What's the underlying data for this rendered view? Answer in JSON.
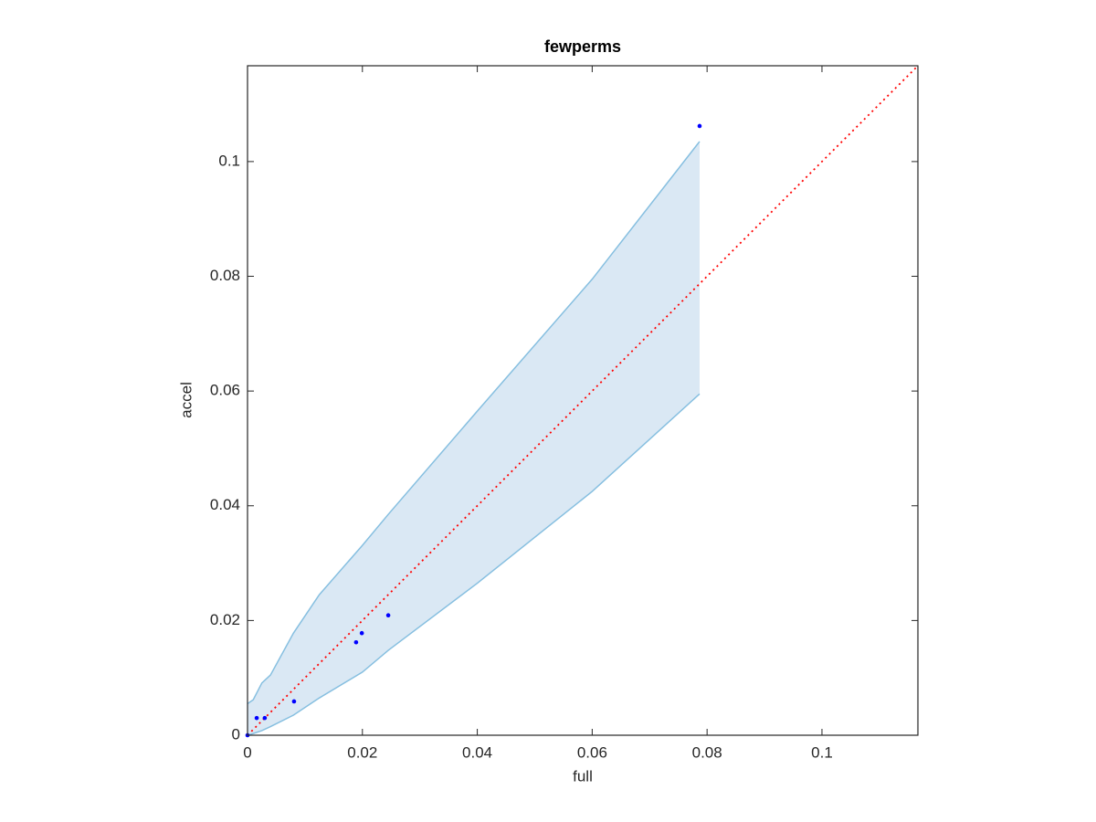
{
  "chart_data": {
    "type": "scatter",
    "title": "fewperms",
    "x_label": "full",
    "y_label": "accel",
    "xlim": [
      0,
      0.1167
    ],
    "ylim": [
      0,
      0.1167
    ],
    "xticks": [
      0,
      0.02,
      0.04,
      0.06,
      0.08,
      0.1
    ],
    "yticks": [
      0,
      0.02,
      0.04,
      0.06,
      0.08,
      0.1
    ],
    "points": {
      "color": "#0000ff",
      "x": [
        0,
        0.0016,
        0.003,
        0.0081,
        0.0189,
        0.0199,
        0.0245,
        0.0787
      ],
      "y": [
        0,
        0.003,
        0.003,
        0.0059,
        0.0162,
        0.0178,
        0.0209,
        0.1062
      ]
    },
    "band": {
      "fill": "#dae8f4",
      "edge_color": "#86bfe0",
      "x": [
        0,
        0.001,
        0.0025,
        0.004,
        0.008,
        0.0125,
        0.02,
        0.0245,
        0.04,
        0.06,
        0.0787
      ],
      "lower": [
        0,
        0.0003,
        0.0008,
        0.0015,
        0.0035,
        0.0065,
        0.011,
        0.0148,
        0.0265,
        0.0425,
        0.0595
      ],
      "upper": [
        0.0055,
        0.0062,
        0.0091,
        0.0105,
        0.0178,
        0.0245,
        0.0331,
        0.0385,
        0.0565,
        0.0795,
        0.1035
      ]
    },
    "reference_line": {
      "color": "#ff0000",
      "x": [
        0,
        0.1167
      ],
      "y": [
        0,
        0.1167
      ]
    }
  }
}
